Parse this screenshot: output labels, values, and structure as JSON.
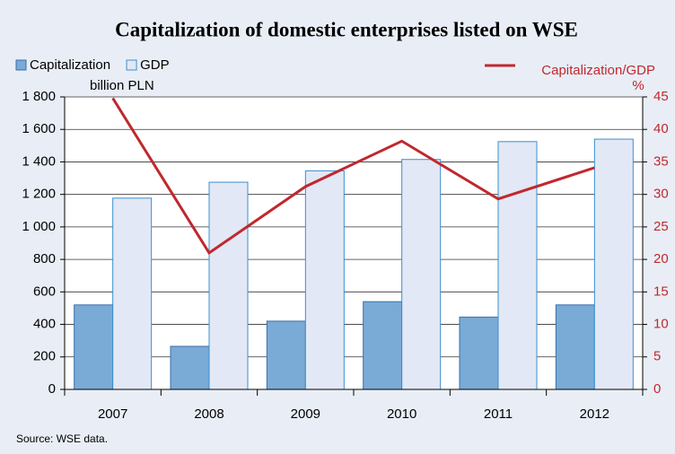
{
  "chart_data": {
    "type": "bar",
    "title": "Capitalization of domestic enterprises listed on WSE",
    "y_label": "billion PLN",
    "y2_label": "%",
    "source": "Source: WSE data.",
    "categories": [
      "2007",
      "2008",
      "2009",
      "2010",
      "2011",
      "2012"
    ],
    "series": [
      {
        "name": "Capitalization",
        "type": "bar",
        "color": "#7aaad6",
        "values": [
          520,
          265,
          420,
          540,
          445,
          520
        ]
      },
      {
        "name": "GDP",
        "type": "bar",
        "color": "#e2e8f5",
        "values": [
          1177,
          1275,
          1345,
          1415,
          1525,
          1540
        ]
      },
      {
        "name": "Capitalization/GDP",
        "type": "line",
        "axis": "y2",
        "color": "#c0282e",
        "values": [
          44.8,
          21.0,
          31.2,
          38.2,
          29.3,
          34.1
        ]
      }
    ],
    "ylim": [
      0,
      1800
    ],
    "yticks": [
      0,
      200,
      400,
      600,
      800,
      {
        "value": 1000,
        "label": "1 000"
      },
      {
        "value": 1200,
        "label": "1 200"
      },
      {
        "value": 1400,
        "label": "1 400"
      },
      {
        "value": 1600,
        "label": "1 600"
      },
      {
        "value": 1800,
        "label": "1 800"
      }
    ],
    "y2lim": [
      0,
      45
    ],
    "y2ticks": [
      0,
      5,
      10,
      15,
      20,
      25,
      30,
      35,
      40,
      45
    ],
    "grid": true
  }
}
